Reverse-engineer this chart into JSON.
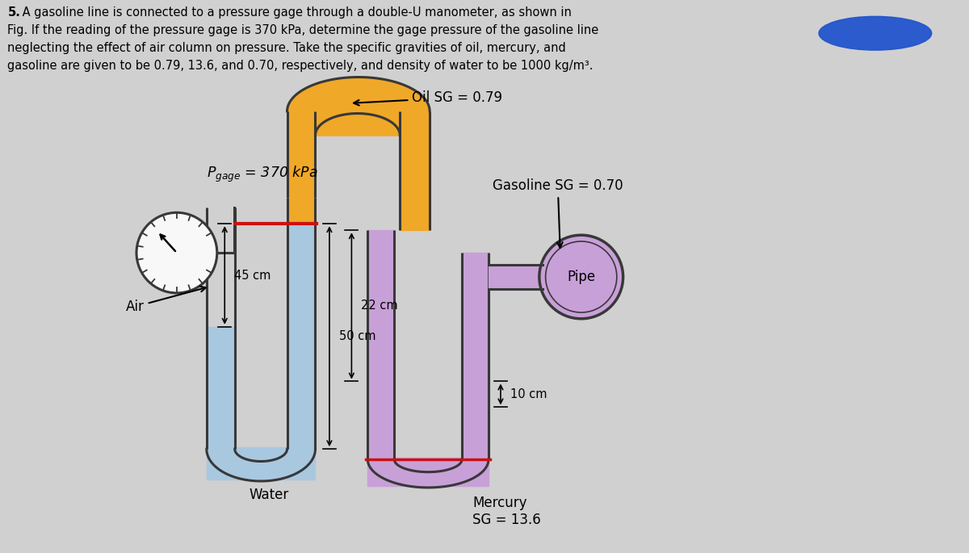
{
  "bg_color": "#d0d0d0",
  "title_line1": "5.  A gasoline line is connected to a pressure gage through a double-U manometer, as shown in",
  "title_line2": "Fig. If the reading of the pressure gage is 370 kPa, determine the gage pressure of the gasoline line",
  "title_line3": "neglecting the effect of air column on pressure. Take the specific gravities of oil, mercury, and",
  "title_line4": "gasoline are given to be 0.79, 13.6, and 0.70, respectively, and density of water to be 1000 kg/m³.",
  "water_color": "#a8c8e0",
  "oil_color": "#f0a828",
  "mercury_color": "#c8a0d8",
  "gasoline_color": "#c8a0d8",
  "wall_color": "#383838",
  "gage_bg": "#f8f8f8",
  "blue_blob": "#2255cc",
  "label_pgage": "$P_{gage}$ = 370 kPa",
  "label_air": "Air",
  "label_water": "Water",
  "label_oil": "Oil SG = 0.79",
  "label_gasoline": "Gasoline SG = 0.70",
  "label_pipe": "Pipe",
  "label_mercury": "Mercury\nSG = 13.6",
  "label_45cm": "45 cm",
  "label_50cm": "50 cm",
  "label_22cm": "22 cm",
  "label_10cm": "10 cm",
  "red_color": "#cc1111"
}
